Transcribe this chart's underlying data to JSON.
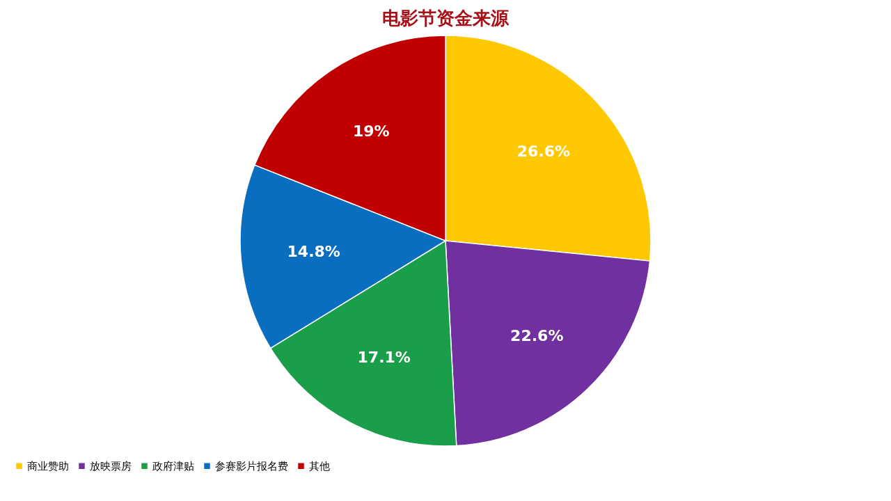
{
  "chart_data": {
    "type": "pie",
    "title": "电影节资金来源",
    "categories": [
      "商业赞助",
      "放映票房",
      "政府津贴",
      "参赛影片报名费",
      "其他"
    ],
    "values": [
      26.6,
      22.6,
      17.1,
      14.8,
      19
    ],
    "colors": [
      "#ffc800",
      "#7030a0",
      "#1a9e4a",
      "#0a6ec0",
      "#c00000"
    ],
    "value_labels": [
      "26.6%",
      "22.6%",
      "17.1%",
      "14.8%",
      "19%"
    ],
    "legend": "bottom"
  }
}
